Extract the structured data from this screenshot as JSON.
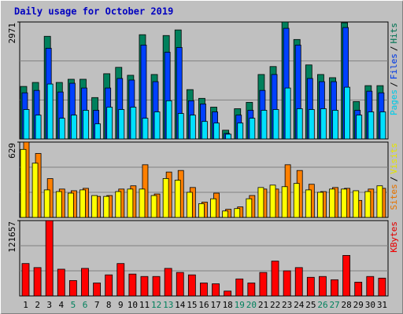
{
  "chart_data": [
    {
      "type": "bar",
      "title": "Daily usage for October 2019",
      "ylim": [
        0,
        2971
      ],
      "yticks": [
        2971
      ],
      "legend_separator": "/",
      "series": [
        {
          "name": "Pages",
          "color": "#00e0ff",
          "values": [
            748,
            606,
            1395,
            526,
            606,
            728,
            384,
            808,
            748,
            808,
            526,
            687,
            970,
            647,
            606,
            445,
            404,
            121,
            404,
            526,
            728,
            748,
            1294,
            768,
            748,
            768,
            728,
            1314,
            606,
            687,
            687
          ]
        },
        {
          "name": "Files",
          "color": "#0040ff",
          "values": [
            1172,
            1233,
            2304,
            1193,
            1415,
            1294,
            728,
            1294,
            1536,
            1496,
            2385,
            1455,
            2203,
            2324,
            970,
            889,
            687,
            141,
            606,
            728,
            1233,
            1637,
            2810,
            2385,
            1536,
            1455,
            1455,
            2830,
            728,
            1213,
            1172
          ]
        },
        {
          "name": "Hits",
          "color": "#00805c",
          "values": [
            1334,
            1435,
            2607,
            1435,
            1516,
            1516,
            1051,
            1657,
            1819,
            1617,
            2648,
            1637,
            2627,
            2769,
            1253,
            1031,
            808,
            222,
            768,
            930,
            1637,
            1839,
            2971,
            2526,
            1880,
            1637,
            1556,
            2951,
            950,
            1354,
            1354
          ]
        }
      ]
    },
    {
      "type": "bar",
      "ylim": [
        0,
        629
      ],
      "yticks": [
        629
      ],
      "legend_separator": "/",
      "series": [
        {
          "name": "Sites",
          "color": "#ff8000",
          "values": [
            629,
            534,
            324,
            237,
            223,
            243,
            176,
            183,
            237,
            264,
            440,
            196,
            379,
            392,
            250,
            128,
            203,
            68,
            88,
            183,
            237,
            237,
            440,
            392,
            277,
            216,
            250,
            243,
            142,
            237,
            243
          ]
        },
        {
          "name": "Visits",
          "color": "#ffff00",
          "values": [
            568,
            453,
            230,
            216,
            203,
            230,
            183,
            176,
            216,
            237,
            237,
            183,
            325,
            311,
            210,
            115,
            156,
            54,
            74,
            156,
            250,
            270,
            257,
            284,
            230,
            210,
            237,
            237,
            223,
            216,
            264
          ]
        }
      ]
    },
    {
      "type": "bar",
      "ylim": [
        0,
        121657
      ],
      "yticks": [
        121657
      ],
      "categories": [
        "1",
        "2",
        "3",
        "4",
        "5",
        "6",
        "7",
        "8",
        "9",
        "10",
        "11",
        "12",
        "13",
        "14",
        "15",
        "16",
        "17",
        "18",
        "19",
        "20",
        "21",
        "22",
        "23",
        "24",
        "25",
        "26",
        "27",
        "28",
        "29",
        "30",
        "31"
      ],
      "category_colors": [
        "#000000",
        "#000000",
        "#000000",
        "#000000",
        "#00805c",
        "#00805c",
        "#000000",
        "#000000",
        "#000000",
        "#000000",
        "#000000",
        "#00805c",
        "#00805c",
        "#000000",
        "#000000",
        "#000000",
        "#000000",
        "#000000",
        "#00805c",
        "#00805c",
        "#000000",
        "#000000",
        "#000000",
        "#000000",
        "#000000",
        "#00805c",
        "#00805c",
        "#000000",
        "#000000",
        "#000000",
        "#000000"
      ],
      "series": [
        {
          "name": "KBytes",
          "color": "#ff0000",
          "values": [
            52325,
            45785,
            121657,
            43169,
            24855,
            44477,
            20930,
            34011,
            52325,
            35319,
            31395,
            31395,
            44477,
            37935,
            34011,
            20930,
            19622,
            7849,
            27471,
            20930,
            37935,
            56249,
            40551,
            45785,
            30087,
            31395,
            26162,
            65406,
            22238,
            31395,
            28779
          ]
        }
      ]
    }
  ]
}
